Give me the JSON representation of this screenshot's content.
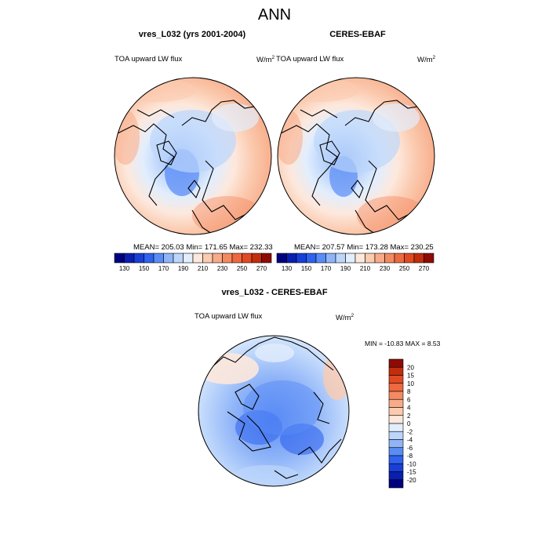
{
  "main_title": "ANN",
  "panels": [
    {
      "title": "vres_L032 (yrs 2001-2004)",
      "variable": "TOA upward LW flux",
      "units_base": "W/m",
      "units_exp": "2",
      "stats": "MEAN= 205.03  Min= 171.65  Max= 232.33"
    },
    {
      "title": "CERES-EBAF",
      "variable": "TOA upward LW flux",
      "units_base": "W/m",
      "units_exp": "2",
      "stats": "MEAN= 207.57  Min= 173.28  Max= 230.25"
    }
  ],
  "diff_panel": {
    "title": "vres_L032 - CERES-EBAF",
    "variable": "TOA upward LW flux",
    "units_base": "W/m",
    "units_exp": "2",
    "stats": "MIN = -10.83 MAX =   8.53"
  },
  "colorbar_top": {
    "colors": [
      "#00007f",
      "#0a1fb0",
      "#1840d8",
      "#2f62ee",
      "#5a8cf5",
      "#8fb4f8",
      "#bcd5fb",
      "#e2eefd",
      "#fde8dc",
      "#fbcbb0",
      "#f7ab88",
      "#f38a61",
      "#ee6940",
      "#e04a23",
      "#c22d0d",
      "#8e0b05"
    ],
    "labels": [
      "130",
      "150",
      "170",
      "190",
      "210",
      "230",
      "250",
      "270"
    ]
  },
  "colorbar_diff": {
    "colors": [
      "#8e0b05",
      "#c22d0d",
      "#e04a23",
      "#ee6940",
      "#f38a61",
      "#f7ab88",
      "#fbcbb0",
      "#fde8dc",
      "#e2eefd",
      "#bcd5fb",
      "#8fb4f8",
      "#5a8cf5",
      "#2f62ee",
      "#1840d8",
      "#0a1fb0",
      "#00007f"
    ],
    "labels": [
      "20",
      "15",
      "10",
      "8",
      "6",
      "4",
      "2",
      "0",
      "-2",
      "-4",
      "-6",
      "-8",
      "-10",
      "-15",
      "-20"
    ]
  }
}
